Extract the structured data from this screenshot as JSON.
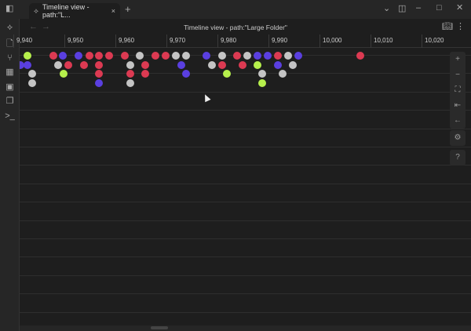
{
  "tab": {
    "title": "Timeline view - path:\"L...",
    "close": "×",
    "new": "+"
  },
  "view": {
    "title": "Timeline view - path:\"Large Folder\""
  },
  "axis": {
    "ticks": [
      "9,940",
      "9,950",
      "9,960",
      "9,970",
      "9,980",
      "9,990",
      "10,000",
      "10,010",
      "10,020"
    ],
    "tick_values": [
      9940,
      9950,
      9960,
      9970,
      9980,
      9990,
      10000,
      10010,
      10020
    ]
  },
  "colors": {
    "red": "#dc3a52",
    "blue": "#5a3fe0",
    "grey": "#c4c4c4",
    "green": "#b6f04c"
  },
  "items": [
    {
      "v": 9942.8,
      "row": 0,
      "c": "green"
    },
    {
      "v": 9947.8,
      "row": 0,
      "c": "red"
    },
    {
      "v": 9949.7,
      "row": 0,
      "c": "blue"
    },
    {
      "v": 9952.8,
      "row": 0,
      "c": "blue"
    },
    {
      "v": 9954.9,
      "row": 0,
      "c": "red"
    },
    {
      "v": 9956.8,
      "row": 0,
      "c": "red"
    },
    {
      "v": 9958.8,
      "row": 0,
      "c": "red"
    },
    {
      "v": 9961.8,
      "row": 0,
      "c": "red"
    },
    {
      "v": 9964.8,
      "row": 0,
      "c": "grey"
    },
    {
      "v": 9967.8,
      "row": 0,
      "c": "red"
    },
    {
      "v": 9969.8,
      "row": 0,
      "c": "red"
    },
    {
      "v": 9971.8,
      "row": 0,
      "c": "grey"
    },
    {
      "v": 9973.8,
      "row": 0,
      "c": "grey"
    },
    {
      "v": 9977.8,
      "row": 0,
      "c": "blue"
    },
    {
      "v": 9980.9,
      "row": 0,
      "c": "grey"
    },
    {
      "v": 9983.8,
      "row": 0,
      "c": "red"
    },
    {
      "v": 9985.8,
      "row": 0,
      "c": "grey"
    },
    {
      "v": 9987.8,
      "row": 0,
      "c": "blue"
    },
    {
      "v": 9989.8,
      "row": 0,
      "c": "blue"
    },
    {
      "v": 9991.8,
      "row": 0,
      "c": "red"
    },
    {
      "v": 9993.8,
      "row": 0,
      "c": "grey"
    },
    {
      "v": 9995.8,
      "row": 0,
      "c": "blue"
    },
    {
      "v": 10008,
      "row": 0,
      "c": "red"
    },
    {
      "v": 9941.4,
      "row": 1,
      "c": "blue"
    },
    {
      "v": 9942.8,
      "row": 1,
      "c": "blue"
    },
    {
      "v": 9948.8,
      "row": 1,
      "c": "grey"
    },
    {
      "v": 9950.8,
      "row": 1,
      "c": "red"
    },
    {
      "v": 9953.8,
      "row": 1,
      "c": "red"
    },
    {
      "v": 9956.8,
      "row": 1,
      "c": "red"
    },
    {
      "v": 9962.9,
      "row": 1,
      "c": "grey"
    },
    {
      "v": 9965.8,
      "row": 1,
      "c": "red"
    },
    {
      "v": 9972.9,
      "row": 1,
      "c": "blue"
    },
    {
      "v": 9978.9,
      "row": 1,
      "c": "grey"
    },
    {
      "v": 9980.9,
      "row": 1,
      "c": "red"
    },
    {
      "v": 9984.9,
      "row": 1,
      "c": "red"
    },
    {
      "v": 9987.8,
      "row": 1,
      "c": "green"
    },
    {
      "v": 9991.8,
      "row": 1,
      "c": "blue"
    },
    {
      "v": 9994.8,
      "row": 1,
      "c": "grey"
    },
    {
      "v": 9943.7,
      "row": 2,
      "c": "grey"
    },
    {
      "v": 9949.8,
      "row": 2,
      "c": "green"
    },
    {
      "v": 9956.8,
      "row": 2,
      "c": "red"
    },
    {
      "v": 9962.9,
      "row": 2,
      "c": "red"
    },
    {
      "v": 9965.8,
      "row": 2,
      "c": "red"
    },
    {
      "v": 9973.8,
      "row": 2,
      "c": "blue"
    },
    {
      "v": 9981.8,
      "row": 2,
      "c": "green"
    },
    {
      "v": 9988.8,
      "row": 2,
      "c": "grey"
    },
    {
      "v": 9992.8,
      "row": 2,
      "c": "grey"
    },
    {
      "v": 9943.7,
      "row": 3,
      "c": "grey"
    },
    {
      "v": 9956.8,
      "row": 3,
      "c": "blue"
    },
    {
      "v": 9962.9,
      "row": 3,
      "c": "grey"
    },
    {
      "v": 9988.8,
      "row": 3,
      "c": "green"
    }
  ],
  "controls": [
    "+",
    "−",
    "⛶",
    "⇤",
    "←"
  ],
  "settings": "⚙",
  "help": "?"
}
